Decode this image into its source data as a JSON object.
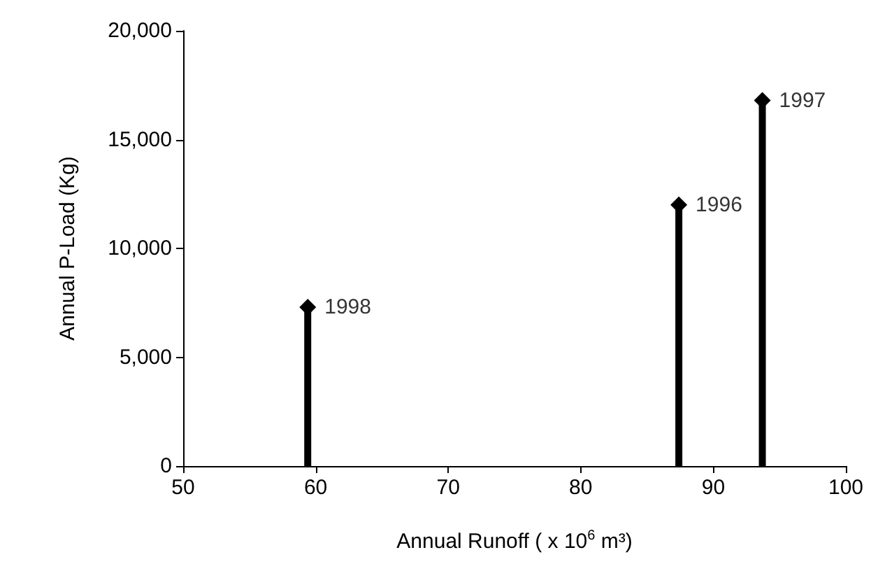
{
  "chart_data": {
    "type": "lollipop",
    "xlabel": "Annual Runoff ( x 10$^{6}$ m³)",
    "ylabel": "Annual P-Load (Kg)",
    "x": [
      59.4,
      87.4,
      93.7
    ],
    "series": [
      {
        "color": "#000000",
        "values": [
          7300,
          12000,
          16800
        ]
      }
    ],
    "marker": "diamond",
    "xlim": [
      50,
      100
    ],
    "xticks": [
      50,
      60,
      70,
      80,
      90,
      100
    ],
    "ylim": [
      0,
      20000
    ],
    "yticks": [
      {
        "value": 0,
        "label": "0"
      },
      {
        "value": 5000,
        "label": "5,000"
      },
      {
        "value": 10000,
        "label": "10,000"
      },
      {
        "value": 15000,
        "label": "15,000"
      },
      {
        "value": 20000,
        "label": "20,000"
      }
    ],
    "grid": false,
    "annotations": [
      {
        "text": "1998",
        "x": 59.4,
        "y": 7300
      },
      {
        "text": "1996",
        "x": 87.4,
        "y": 12000
      },
      {
        "text": "1997",
        "x": 93.7,
        "y": 16800
      }
    ]
  }
}
